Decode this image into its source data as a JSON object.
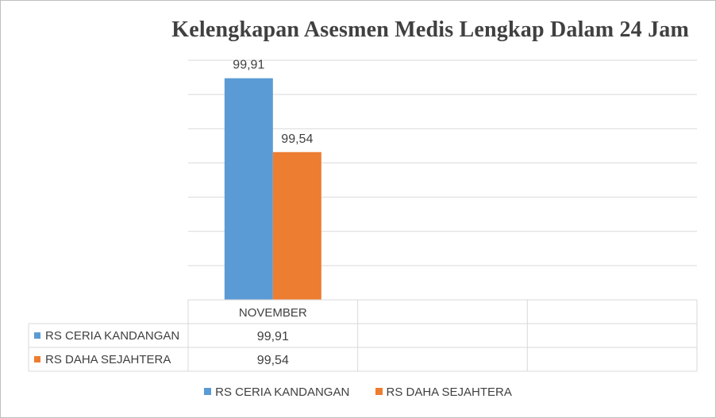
{
  "chart_data": {
    "type": "bar",
    "title": "Kelengkapan Asesmen Medis Lengkap Dalam 24 Jam",
    "categories": [
      "NOVEMBER",
      "",
      ""
    ],
    "series": [
      {
        "name": "RS CERIA KANDANGAN",
        "color": "#5b9bd5",
        "values": [
          99.91,
          null,
          null
        ],
        "labels": [
          "99,91",
          "",
          ""
        ]
      },
      {
        "name": "RS DAHA SEJAHTERA",
        "color": "#ed7d31",
        "values": [
          99.54,
          null,
          null
        ],
        "labels": [
          "99,54",
          "",
          ""
        ]
      }
    ],
    "ylim": [
      98.8,
      100.0
    ],
    "grid": true,
    "legend": "bottom",
    "data_table": true
  }
}
